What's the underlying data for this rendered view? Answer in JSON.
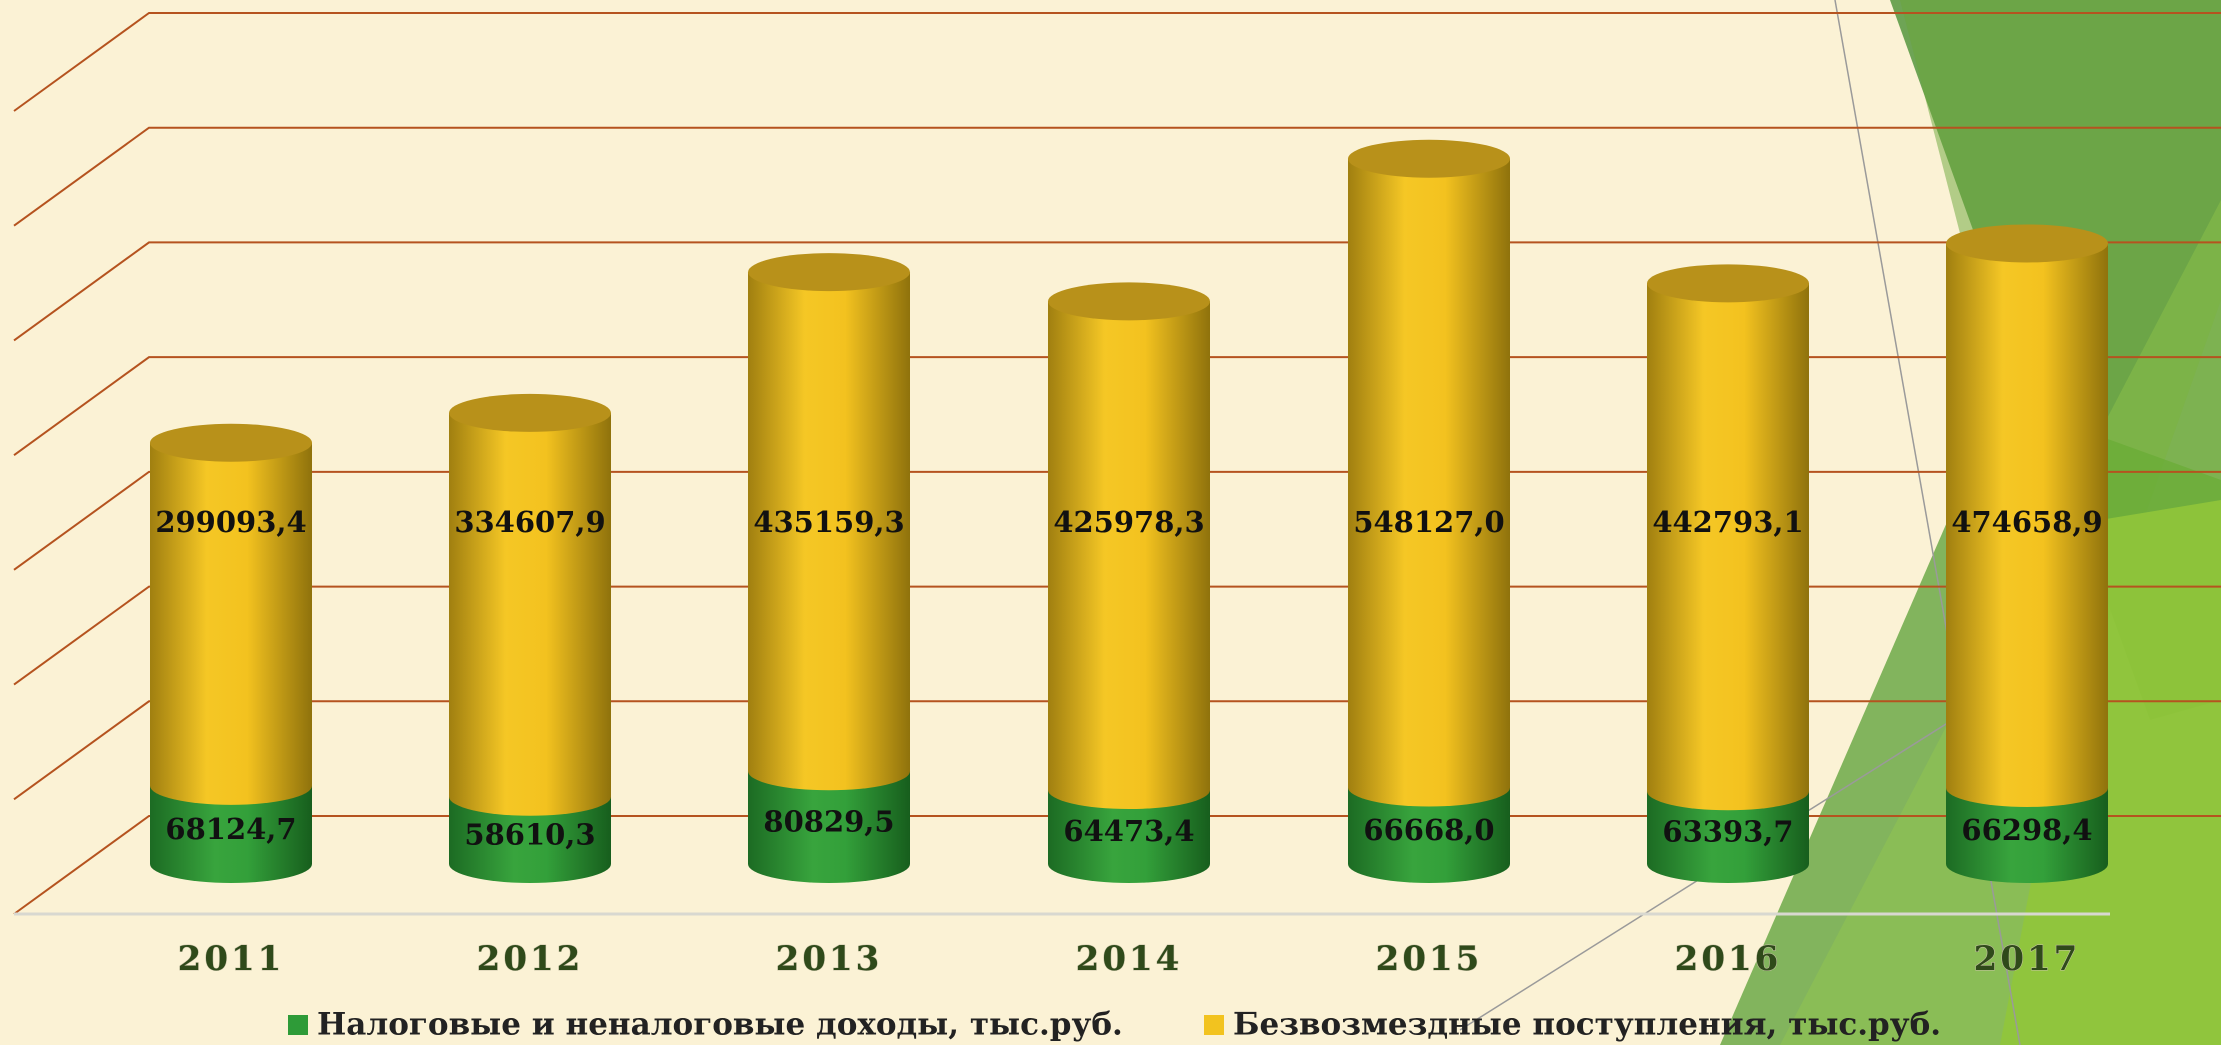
{
  "chart_data": {
    "type": "bar",
    "stacked": true,
    "categories": [
      "2011",
      "2012",
      "2013",
      "2014",
      "2015",
      "2016",
      "2017"
    ],
    "series": [
      {
        "name": "Налоговые и неналоговые доходы, тыс.руб.",
        "color": "#2e9b38",
        "values": [
          68124.7,
          58610.3,
          80829.5,
          64473.4,
          66668.0,
          63393.7,
          66298.4
        ],
        "value_labels": [
          "68124,7",
          "58610,3",
          "80829,5",
          "64473,4",
          "66668,0",
          "63393,7",
          "66298,4"
        ]
      },
      {
        "name": "Безвозмездные поступления, тыс.руб.",
        "color": "#f2c31f",
        "values": [
          299093.4,
          334607.9,
          435159.3,
          425978.3,
          548127.0,
          442793.1,
          474658.9
        ],
        "value_labels": [
          "299093,4",
          "334607,9",
          "435159,3",
          "425978,3",
          "548127,0",
          "442793,1",
          "474658,9"
        ]
      }
    ],
    "ylim": [
      0,
      700000
    ],
    "yticks": [
      0,
      100000,
      200000,
      300000,
      400000,
      500000,
      600000,
      700000
    ],
    "grid": true,
    "legend": "bottom"
  }
}
